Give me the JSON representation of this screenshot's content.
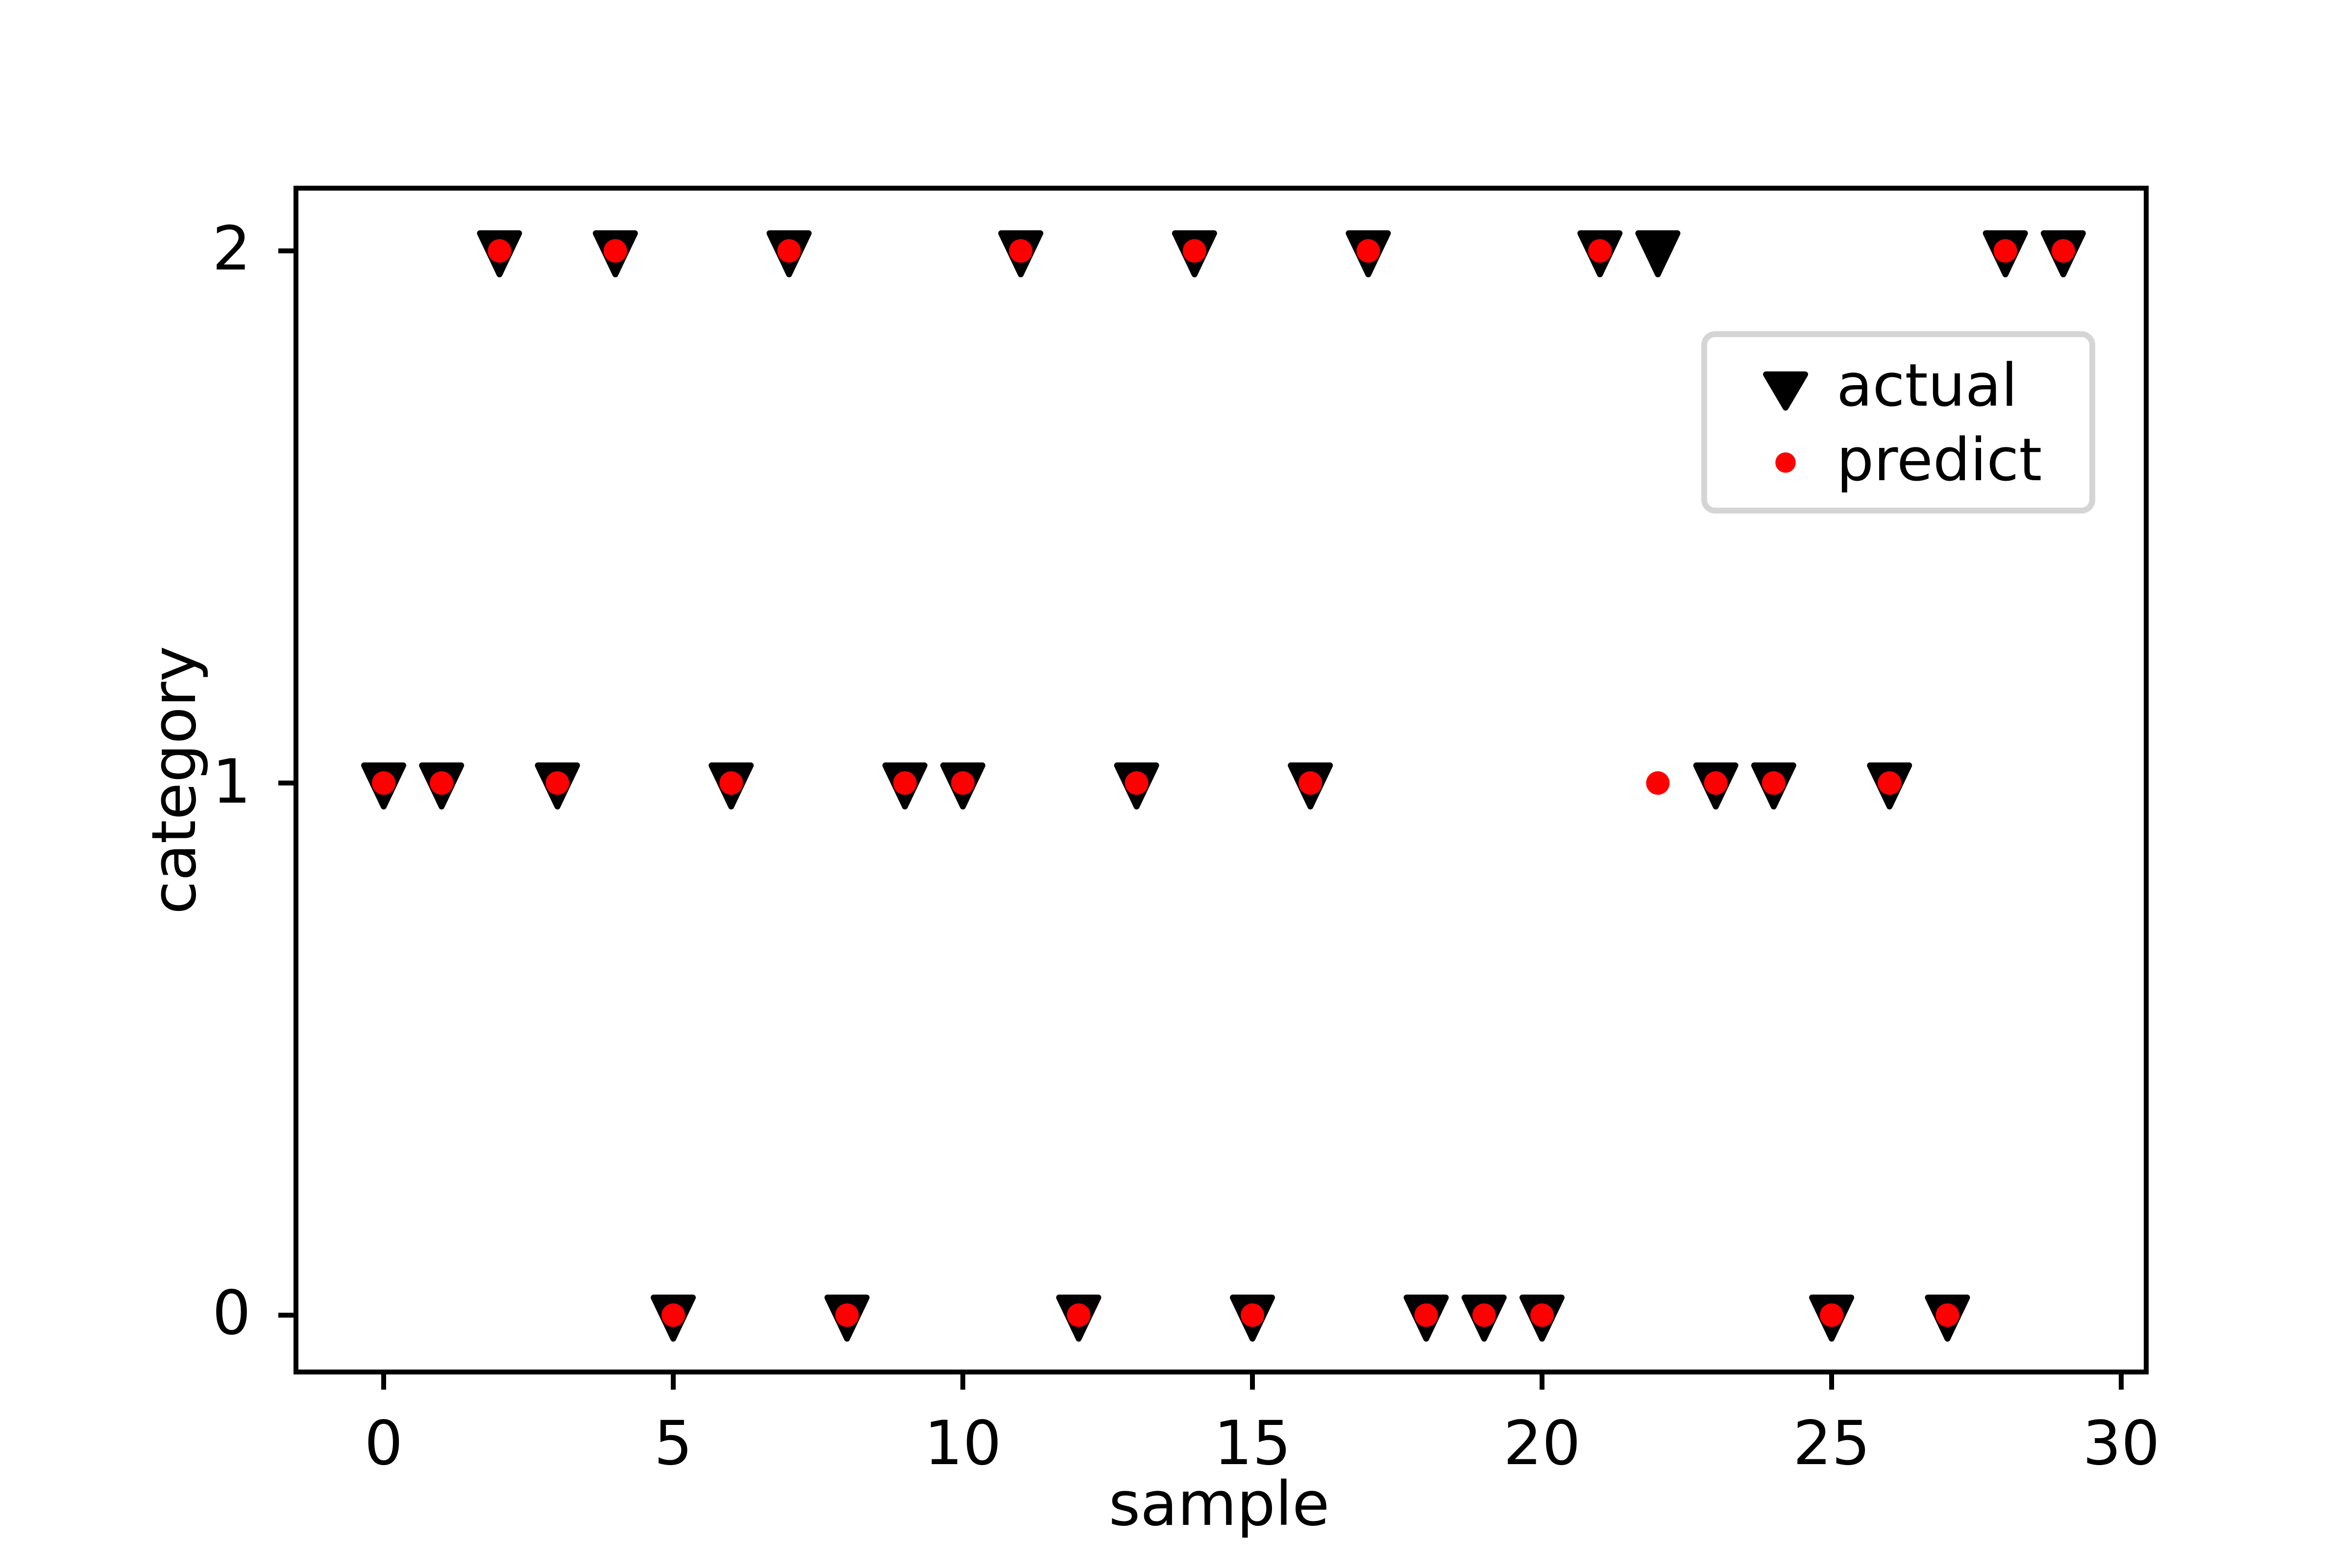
{
  "chart_data": {
    "type": "scatter",
    "title": "",
    "xlabel": "sample",
    "ylabel": "category",
    "x": [
      0,
      1,
      2,
      3,
      4,
      5,
      6,
      7,
      8,
      9,
      10,
      11,
      12,
      13,
      14,
      15,
      16,
      17,
      18,
      19,
      20,
      21,
      22,
      23,
      24,
      25,
      26,
      27,
      28,
      29
    ],
    "series": [
      {
        "name": "actual",
        "marker": "triangle-down",
        "color": "#000000",
        "values": [
          1,
          1,
          2,
          1,
          2,
          0,
          1,
          2,
          0,
          1,
          1,
          2,
          0,
          1,
          2,
          0,
          1,
          2,
          0,
          0,
          0,
          2,
          2,
          1,
          1,
          0,
          1,
          0,
          2,
          2
        ]
      },
      {
        "name": "predict",
        "marker": "circle",
        "color": "#ff0000",
        "values": [
          1,
          1,
          2,
          1,
          2,
          0,
          1,
          2,
          0,
          1,
          1,
          2,
          0,
          1,
          2,
          0,
          1,
          2,
          0,
          0,
          0,
          2,
          1,
          1,
          1,
          0,
          1,
          0,
          2,
          2
        ]
      }
    ],
    "xlim": [
      -1.45,
      30.45
    ],
    "ylim": [
      -0.1,
      2.1
    ],
    "x_ticks": [
      0,
      5,
      10,
      15,
      20,
      25,
      30
    ],
    "y_ticks": [
      0,
      1,
      2
    ],
    "grid": false,
    "legend": {
      "position": "upper right",
      "entries": [
        "actual",
        "predict"
      ],
      "border_color": "#d5d5d5"
    },
    "colors": {
      "actual": "#000000",
      "predict": "#ff0000",
      "axes": "#000000",
      "background": "#ffffff"
    }
  }
}
